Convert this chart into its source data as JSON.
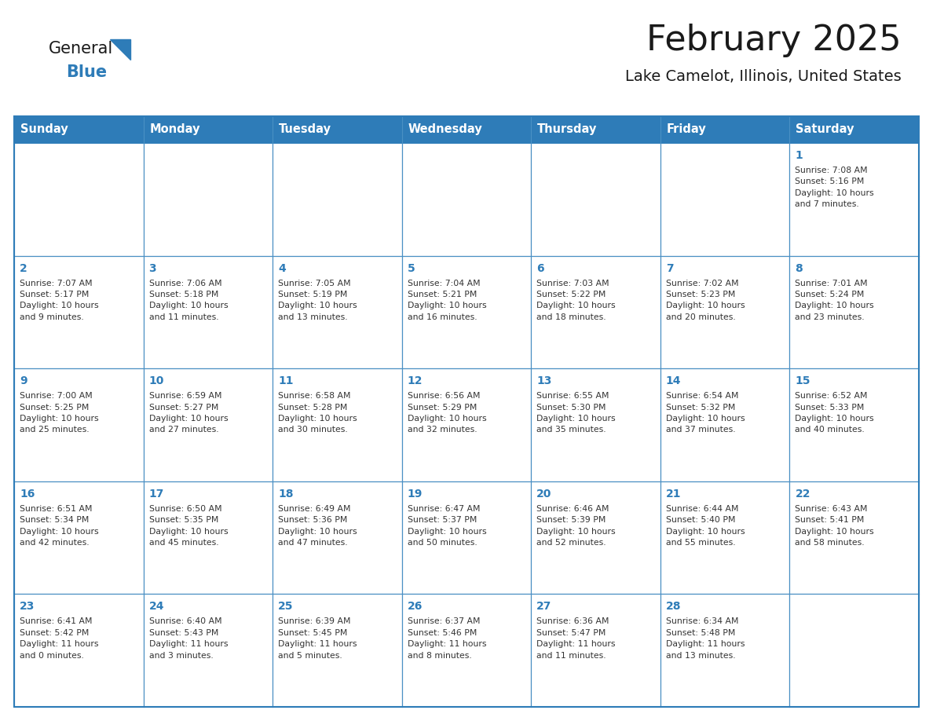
{
  "title": "February 2025",
  "subtitle": "Lake Camelot, Illinois, United States",
  "header_bg": "#2E7CB8",
  "header_text_color": "#FFFFFF",
  "cell_border_color": "#4A90C4",
  "day_number_color": "#2E7CB8",
  "cell_text_color": "#333333",
  "background_color": "#FFFFFF",
  "days_of_week": [
    "Sunday",
    "Monday",
    "Tuesday",
    "Wednesday",
    "Thursday",
    "Friday",
    "Saturday"
  ],
  "weeks": [
    [
      {
        "day": "",
        "info": ""
      },
      {
        "day": "",
        "info": ""
      },
      {
        "day": "",
        "info": ""
      },
      {
        "day": "",
        "info": ""
      },
      {
        "day": "",
        "info": ""
      },
      {
        "day": "",
        "info": ""
      },
      {
        "day": "1",
        "info": "Sunrise: 7:08 AM\nSunset: 5:16 PM\nDaylight: 10 hours\nand 7 minutes."
      }
    ],
    [
      {
        "day": "2",
        "info": "Sunrise: 7:07 AM\nSunset: 5:17 PM\nDaylight: 10 hours\nand 9 minutes."
      },
      {
        "day": "3",
        "info": "Sunrise: 7:06 AM\nSunset: 5:18 PM\nDaylight: 10 hours\nand 11 minutes."
      },
      {
        "day": "4",
        "info": "Sunrise: 7:05 AM\nSunset: 5:19 PM\nDaylight: 10 hours\nand 13 minutes."
      },
      {
        "day": "5",
        "info": "Sunrise: 7:04 AM\nSunset: 5:21 PM\nDaylight: 10 hours\nand 16 minutes."
      },
      {
        "day": "6",
        "info": "Sunrise: 7:03 AM\nSunset: 5:22 PM\nDaylight: 10 hours\nand 18 minutes."
      },
      {
        "day": "7",
        "info": "Sunrise: 7:02 AM\nSunset: 5:23 PM\nDaylight: 10 hours\nand 20 minutes."
      },
      {
        "day": "8",
        "info": "Sunrise: 7:01 AM\nSunset: 5:24 PM\nDaylight: 10 hours\nand 23 minutes."
      }
    ],
    [
      {
        "day": "9",
        "info": "Sunrise: 7:00 AM\nSunset: 5:25 PM\nDaylight: 10 hours\nand 25 minutes."
      },
      {
        "day": "10",
        "info": "Sunrise: 6:59 AM\nSunset: 5:27 PM\nDaylight: 10 hours\nand 27 minutes."
      },
      {
        "day": "11",
        "info": "Sunrise: 6:58 AM\nSunset: 5:28 PM\nDaylight: 10 hours\nand 30 minutes."
      },
      {
        "day": "12",
        "info": "Sunrise: 6:56 AM\nSunset: 5:29 PM\nDaylight: 10 hours\nand 32 minutes."
      },
      {
        "day": "13",
        "info": "Sunrise: 6:55 AM\nSunset: 5:30 PM\nDaylight: 10 hours\nand 35 minutes."
      },
      {
        "day": "14",
        "info": "Sunrise: 6:54 AM\nSunset: 5:32 PM\nDaylight: 10 hours\nand 37 minutes."
      },
      {
        "day": "15",
        "info": "Sunrise: 6:52 AM\nSunset: 5:33 PM\nDaylight: 10 hours\nand 40 minutes."
      }
    ],
    [
      {
        "day": "16",
        "info": "Sunrise: 6:51 AM\nSunset: 5:34 PM\nDaylight: 10 hours\nand 42 minutes."
      },
      {
        "day": "17",
        "info": "Sunrise: 6:50 AM\nSunset: 5:35 PM\nDaylight: 10 hours\nand 45 minutes."
      },
      {
        "day": "18",
        "info": "Sunrise: 6:49 AM\nSunset: 5:36 PM\nDaylight: 10 hours\nand 47 minutes."
      },
      {
        "day": "19",
        "info": "Sunrise: 6:47 AM\nSunset: 5:37 PM\nDaylight: 10 hours\nand 50 minutes."
      },
      {
        "day": "20",
        "info": "Sunrise: 6:46 AM\nSunset: 5:39 PM\nDaylight: 10 hours\nand 52 minutes."
      },
      {
        "day": "21",
        "info": "Sunrise: 6:44 AM\nSunset: 5:40 PM\nDaylight: 10 hours\nand 55 minutes."
      },
      {
        "day": "22",
        "info": "Sunrise: 6:43 AM\nSunset: 5:41 PM\nDaylight: 10 hours\nand 58 minutes."
      }
    ],
    [
      {
        "day": "23",
        "info": "Sunrise: 6:41 AM\nSunset: 5:42 PM\nDaylight: 11 hours\nand 0 minutes."
      },
      {
        "day": "24",
        "info": "Sunrise: 6:40 AM\nSunset: 5:43 PM\nDaylight: 11 hours\nand 3 minutes."
      },
      {
        "day": "25",
        "info": "Sunrise: 6:39 AM\nSunset: 5:45 PM\nDaylight: 11 hours\nand 5 minutes."
      },
      {
        "day": "26",
        "info": "Sunrise: 6:37 AM\nSunset: 5:46 PM\nDaylight: 11 hours\nand 8 minutes."
      },
      {
        "day": "27",
        "info": "Sunrise: 6:36 AM\nSunset: 5:47 PM\nDaylight: 11 hours\nand 11 minutes."
      },
      {
        "day": "28",
        "info": "Sunrise: 6:34 AM\nSunset: 5:48 PM\nDaylight: 11 hours\nand 13 minutes."
      },
      {
        "day": "",
        "info": ""
      }
    ]
  ],
  "logo_triangle_color": "#2E7CB8",
  "title_fontsize": 32,
  "subtitle_fontsize": 14,
  "header_fontsize": 10.5,
  "day_num_fontsize": 10,
  "cell_info_fontsize": 7.8
}
